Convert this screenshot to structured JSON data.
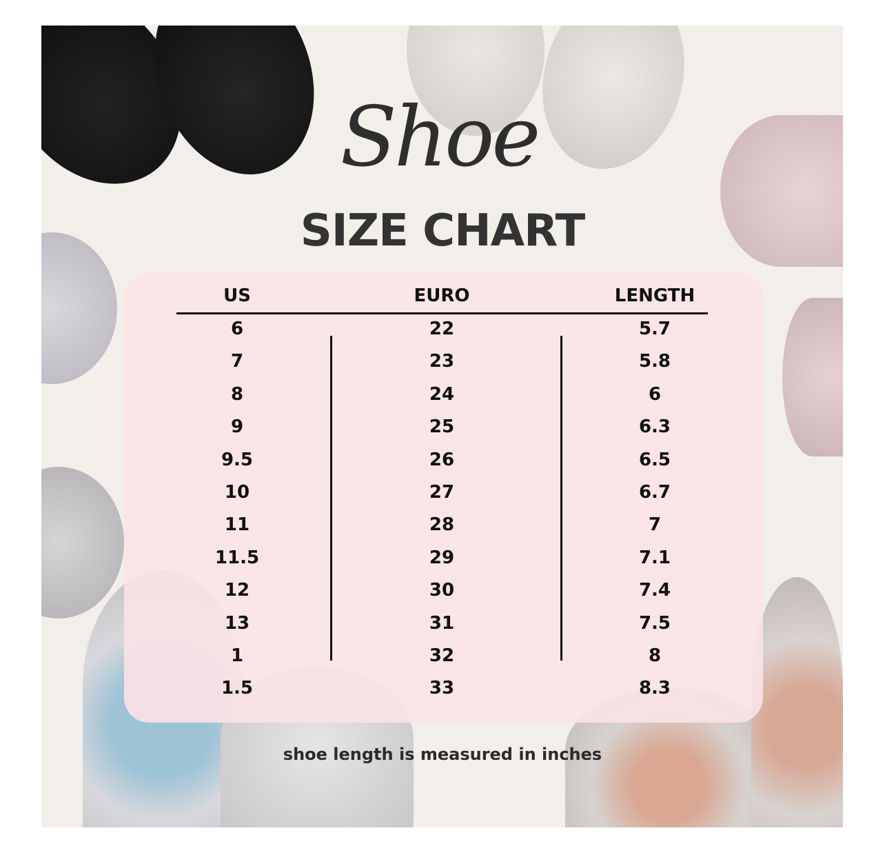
{
  "title": {
    "script": "Shoe",
    "main": "SIZE CHART"
  },
  "table": {
    "headers": [
      "US",
      "EURO",
      "LENGTH"
    ],
    "rows": [
      [
        "6",
        "22",
        "5.7"
      ],
      [
        "7",
        "23",
        "5.8"
      ],
      [
        "8",
        "24",
        "6"
      ],
      [
        "9",
        "25",
        "6.3"
      ],
      [
        "9.5",
        "26",
        "6.5"
      ],
      [
        "10",
        "27",
        "6.7"
      ],
      [
        "11",
        "28",
        "7"
      ],
      [
        "11.5",
        "29",
        "7.1"
      ],
      [
        "12",
        "30",
        "7.4"
      ],
      [
        "13",
        "31",
        "7.5"
      ],
      [
        "1",
        "32",
        "8"
      ],
      [
        "1.5",
        "33",
        "8.3"
      ]
    ]
  },
  "note": "shoe length is measured in inches",
  "colors": {
    "background": "#f2efea",
    "panel": "#fae2e5",
    "text": "#111111"
  }
}
